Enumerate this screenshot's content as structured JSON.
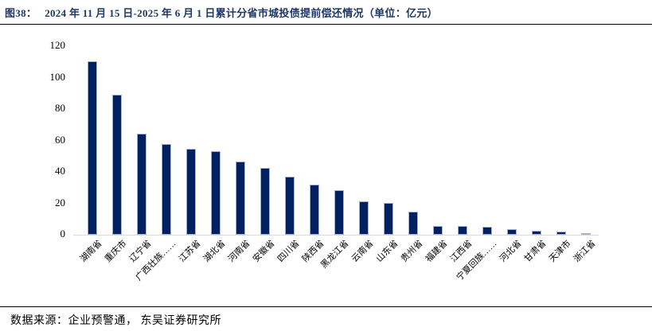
{
  "header": {
    "title_tag": "图38：",
    "title_text": "2024 年 11 月 15 日-2025 年 6 月 1 日累计分省市城投债提前偿还情况（单位：亿元）",
    "title_color": "#1f3864"
  },
  "footer": {
    "source_text": "数据来源：企业预警通， 东吴证券研究所"
  },
  "chart_data": {
    "type": "bar",
    "title": "2024 年 11 月 15 日-2025 年 6 月 1 日累计分省市城投债提前偿还情况",
    "unit": "亿元",
    "categories": [
      "湖南省",
      "重庆市",
      "辽宁省",
      "广西壮族……",
      "江苏省",
      "湖北省",
      "河南省",
      "安徽省",
      "四川省",
      "陕西省",
      "黑龙江省",
      "云南省",
      "山东省",
      "贵州省",
      "福建省",
      "江西省",
      "宁夏回族……",
      "河北省",
      "甘肃省",
      "天津市",
      "浙江省"
    ],
    "values": [
      110.5,
      89,
      64.5,
      57.5,
      54.5,
      53,
      46.5,
      42.5,
      37,
      32,
      28.5,
      21.5,
      20.5,
      14.5,
      5.5,
      5.5,
      5,
      3.5,
      2.5,
      2,
      0.8
    ],
    "xlabel": "",
    "ylabel": "",
    "ylim": [
      0,
      120
    ],
    "yticks": [
      0,
      20,
      40,
      60,
      80,
      100,
      120
    ],
    "grid": false,
    "legend": false,
    "colors": {
      "bar_fill": "#002060",
      "bar_border": "#a6b0d4",
      "axis_line": "#d9d9d9",
      "tick_text": "#000000"
    }
  }
}
